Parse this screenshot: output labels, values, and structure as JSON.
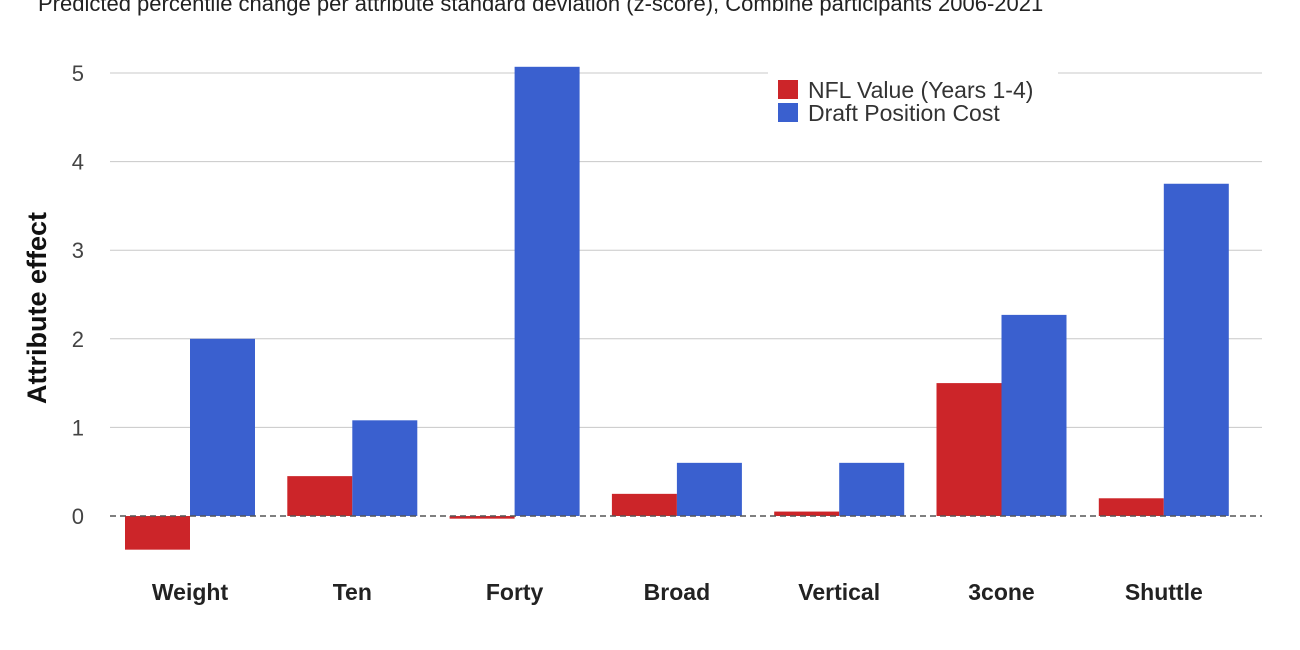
{
  "chart_data": {
    "type": "bar",
    "subtitle": "Predicted percentile change per attribute standard deviation (z-score), Combine participants 2006-2021",
    "ylabel": "Attribute effect",
    "xlabel": "",
    "ylim": [
      -0.6,
      5.3
    ],
    "yticks": [
      0,
      1,
      2,
      3,
      4,
      5
    ],
    "grid": true,
    "legend_position": "top-right",
    "categories": [
      "Weight",
      "Ten",
      "Forty",
      "Broad",
      "Vertical",
      "3cone",
      "Shuttle"
    ],
    "series": [
      {
        "name": "NFL Value (Years 1-4)",
        "color": "#cc2529",
        "values": [
          -0.38,
          0.45,
          -0.03,
          0.25,
          0.05,
          1.5,
          0.2
        ]
      },
      {
        "name": "Draft Position Cost",
        "color": "#3a60cf",
        "values": [
          2.0,
          1.08,
          5.07,
          0.6,
          0.6,
          2.27,
          3.75
        ]
      }
    ]
  }
}
